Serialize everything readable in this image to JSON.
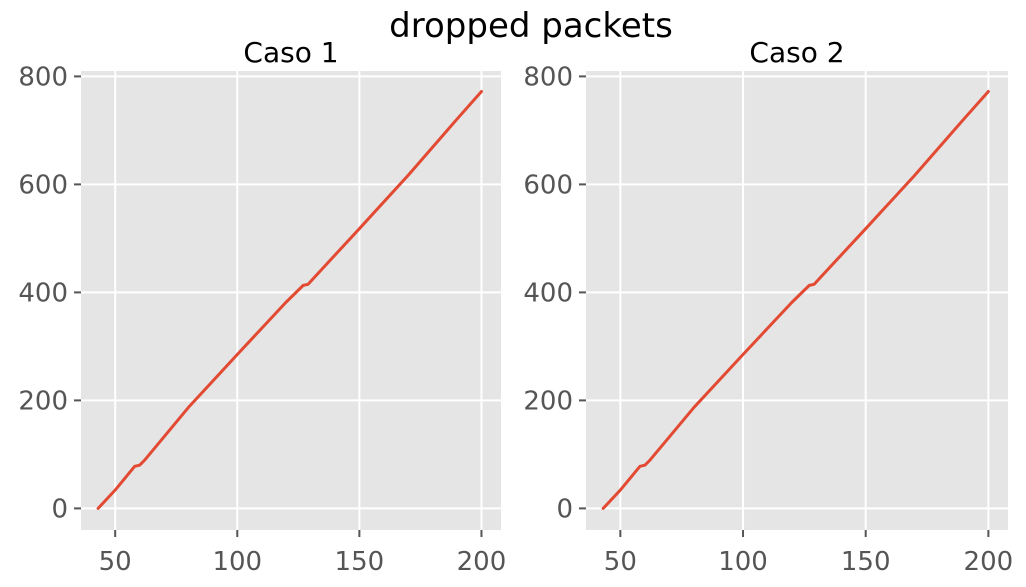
{
  "figure": {
    "title": "dropped packets"
  },
  "colors": {
    "line": "#e24a33",
    "background": "#e5e5e5",
    "grid": "#ffffff",
    "tick_text": "#555555"
  },
  "chart_data": [
    {
      "type": "line",
      "title": "Caso 1",
      "xlabel": "",
      "ylabel": "",
      "xlim": [
        36,
        208
      ],
      "ylim": [
        -40,
        810
      ],
      "xticks": [
        50,
        100,
        150,
        200
      ],
      "yticks": [
        0,
        200,
        400,
        600,
        800
      ],
      "grid": true,
      "series": [
        {
          "x": [
            43,
            50,
            58,
            60,
            62,
            80,
            100,
            120,
            127,
            129,
            132,
            150,
            170,
            190,
            200
          ],
          "y": [
            0,
            34,
            78,
            80,
            89,
            187,
            285,
            382,
            413,
            415,
            430,
            518,
            617,
            721,
            772
          ]
        }
      ]
    },
    {
      "type": "line",
      "title": "Caso 2",
      "xlabel": "",
      "ylabel": "",
      "xlim": [
        36,
        208
      ],
      "ylim": [
        -40,
        810
      ],
      "xticks": [
        50,
        100,
        150,
        200
      ],
      "yticks": [
        0,
        200,
        400,
        600,
        800
      ],
      "grid": true,
      "series": [
        {
          "x": [
            43,
            50,
            58,
            60,
            62,
            80,
            100,
            120,
            127,
            129,
            132,
            150,
            170,
            190,
            200
          ],
          "y": [
            0,
            34,
            78,
            80,
            89,
            187,
            285,
            382,
            413,
            415,
            430,
            518,
            617,
            721,
            772
          ]
        }
      ]
    }
  ]
}
